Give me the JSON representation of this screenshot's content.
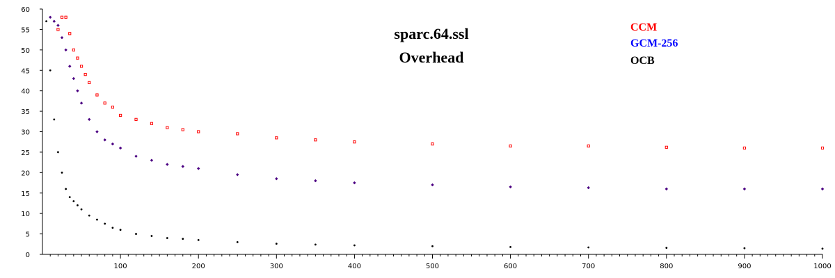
{
  "chart_data": {
    "type": "scatter",
    "title": [
      "sparc.64.ssl",
      "Overhead"
    ],
    "xlabel": "",
    "ylabel": "",
    "xlim": [
      0,
      1000
    ],
    "ylim": [
      0,
      60
    ],
    "xticks": [
      100,
      200,
      300,
      400,
      500,
      600,
      700,
      800,
      900,
      1000
    ],
    "yticks": [
      0,
      5,
      10,
      15,
      20,
      25,
      30,
      35,
      40,
      45,
      50,
      55,
      60
    ],
    "grid": false,
    "legend_position": "top-right",
    "series": [
      {
        "name": "CCM",
        "color": "#ff0000",
        "marker": "square",
        "x": [
          20,
          25,
          30,
          35,
          40,
          45,
          50,
          55,
          60,
          70,
          80,
          90,
          100,
          120,
          140,
          160,
          180,
          200,
          250,
          300,
          350,
          400,
          500,
          600,
          700,
          800,
          900,
          1000
        ],
        "y": [
          55,
          58,
          58,
          54,
          50,
          48,
          46,
          44,
          42,
          39,
          37,
          36,
          34,
          33,
          32,
          31,
          30.5,
          30,
          29.5,
          28.5,
          28,
          27.5,
          27,
          26.5,
          26.5,
          26.2,
          26,
          26
        ]
      },
      {
        "name": "GCM-256",
        "color": "#4b0082",
        "marker": "diamond",
        "x": [
          10,
          15,
          20,
          25,
          30,
          35,
          40,
          45,
          50,
          60,
          70,
          80,
          90,
          100,
          120,
          140,
          160,
          180,
          200,
          250,
          300,
          350,
          400,
          500,
          600,
          700,
          800,
          900,
          1000
        ],
        "y": [
          58,
          57,
          56,
          53,
          50,
          46,
          43,
          40,
          37,
          33,
          30,
          28,
          27,
          26,
          24,
          23,
          22,
          21.5,
          21,
          19.5,
          18.5,
          18,
          17.5,
          17,
          16.5,
          16.3,
          16,
          16,
          16
        ]
      },
      {
        "name": "OCB",
        "color": "#000000",
        "marker": "dot",
        "x": [
          5,
          10,
          15,
          20,
          25,
          30,
          35,
          40,
          45,
          50,
          60,
          70,
          80,
          90,
          100,
          120,
          140,
          160,
          180,
          200,
          250,
          300,
          350,
          400,
          500,
          600,
          700,
          800,
          900,
          1000
        ],
        "y": [
          57,
          45,
          33,
          25,
          20,
          16,
          14,
          13,
          12,
          11,
          9.5,
          8.5,
          7.5,
          6.5,
          6,
          5,
          4.5,
          4,
          3.8,
          3.5,
          3,
          2.6,
          2.4,
          2.2,
          2,
          1.8,
          1.7,
          1.6,
          1.5,
          1.4
        ]
      }
    ]
  }
}
